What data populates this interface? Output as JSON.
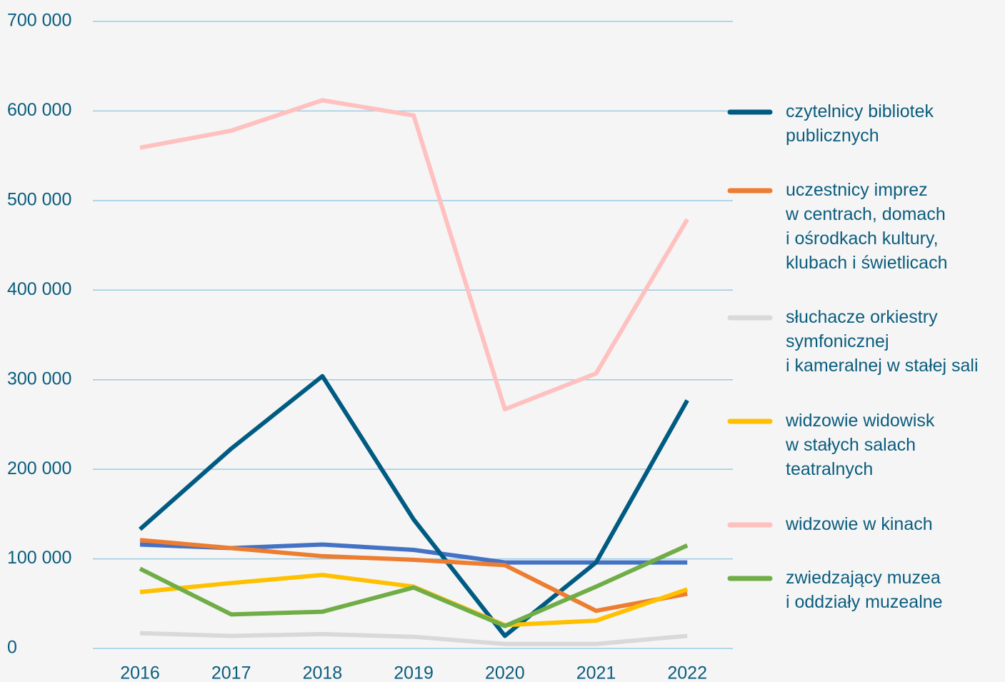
{
  "chart_data": {
    "type": "line",
    "x": [
      "2016",
      "2017",
      "2018",
      "2019",
      "2020",
      "2021",
      "2022"
    ],
    "series": [
      {
        "color": "#4472c4",
        "values": [
          116000,
          112000,
          116000,
          110000,
          96000,
          96000,
          96000
        ]
      },
      {
        "name": "czytelnicy bibliotek\npublicznych",
        "color": "#005b82",
        "values": [
          133000,
          223000,
          304000,
          144000,
          14000,
          96000,
          277000
        ]
      },
      {
        "name": "uczestnicy imprez\nw centrach, domach\ni ośrodkach kultury,\nklubach i świetlicach",
        "color": "#ed7d31",
        "values": [
          121000,
          112000,
          103000,
          99000,
          93000,
          42000,
          61000
        ]
      },
      {
        "name": "słuchacze  orkiestry\nsymfonicznej\ni kameralnej w stałej sali",
        "color": "#d9d9d9",
        "values": [
          17000,
          14000,
          16000,
          13000,
          5000,
          5000,
          14000
        ]
      },
      {
        "name": "widzowie widowisk\nw stałych salach\nteatralnych",
        "color": "#ffc000",
        "values": [
          63000,
          73000,
          82000,
          69000,
          26000,
          31000,
          66000
        ]
      },
      {
        "name": "widzowie w kinach",
        "color": "#ffc0c0",
        "values": [
          559000,
          578000,
          612000,
          595000,
          267000,
          307000,
          479000
        ]
      },
      {
        "name": "zwiedzający muzea\ni oddziały muzealne",
        "color": "#70ad47",
        "values": [
          89000,
          38000,
          41000,
          68000,
          25000,
          69000,
          115000
        ]
      }
    ],
    "ylim": [
      0,
      700000
    ],
    "yticks": [
      0,
      {
        "value": 100000,
        "label": "100 000"
      },
      {
        "value": 200000,
        "label": "200 000"
      },
      {
        "value": 300000,
        "label": "300 000"
      },
      {
        "value": 400000,
        "label": "400 000"
      },
      {
        "value": 500000,
        "label": "500 000"
      },
      {
        "value": 600000,
        "label": "600 000"
      },
      {
        "value": 700000,
        "label": "700 000"
      }
    ],
    "grid": true,
    "legend": "right"
  }
}
